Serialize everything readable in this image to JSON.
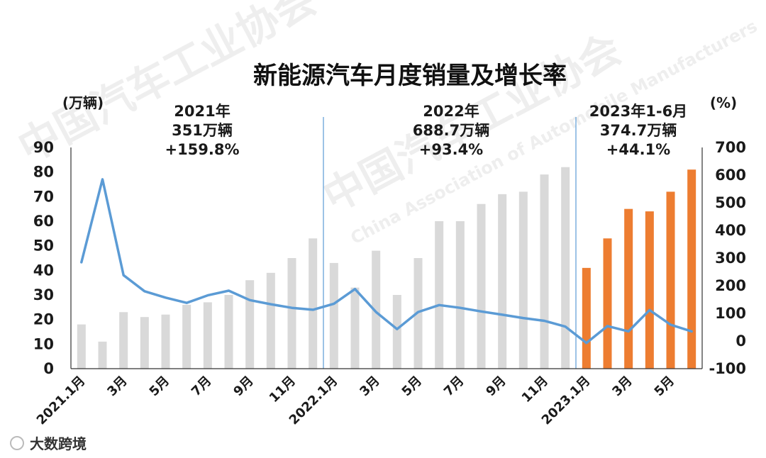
{
  "chart_data": {
    "type": "bar",
    "title": "新能源汽车月度销量及增长率",
    "left_unit": "(万辆)",
    "right_unit": "(%)",
    "y_left": {
      "min": 0,
      "max": 90,
      "ticks": [
        "0",
        "10",
        "20",
        "30",
        "40",
        "50",
        "60",
        "70",
        "80",
        "90"
      ]
    },
    "y_right": {
      "min": -100,
      "max": 700,
      "ticks": [
        "-100",
        "0",
        "100",
        "200",
        "300",
        "400",
        "500",
        "600",
        "700"
      ]
    },
    "x_labels": [
      "2021.1月",
      "",
      "3月",
      "",
      "5月",
      "",
      "7月",
      "",
      "9月",
      "",
      "11月",
      "",
      "2022.1月",
      "",
      "3月",
      "",
      "5月",
      "",
      "7月",
      "",
      "9月",
      "",
      "11月",
      "",
      "2023.1月",
      "",
      "3月",
      "",
      "5月",
      ""
    ],
    "sales": [
      18,
      11,
      23,
      21,
      22,
      26,
      27,
      30,
      36,
      39,
      45,
      53,
      43,
      33,
      48,
      30,
      45,
      60,
      60,
      67,
      71,
      72,
      79,
      82,
      41,
      53,
      65,
      64,
      72,
      81
    ],
    "growth": [
      285,
      585,
      238,
      180,
      157,
      138,
      165,
      182,
      148,
      133,
      120,
      113,
      135,
      188,
      105,
      43,
      105,
      130,
      120,
      107,
      95,
      83,
      73,
      52,
      -7,
      54,
      35,
      112,
      59,
      35
    ],
    "series": [
      {
        "name": "",
        "kind": "bar",
        "values_ref": "sales"
      },
      {
        "name": "",
        "kind": "line",
        "values_ref": "growth"
      }
    ],
    "colors": {
      "bar_past": "#d9d9d9",
      "bar_current": "#ed7d31",
      "line": "#5b9bd5",
      "divider": "#5b9bd5",
      "axis": "#333333"
    },
    "annotations": [
      {
        "line1": "2021年",
        "line2": "351万辆",
        "line3": "+159.8%"
      },
      {
        "line1": "2022年",
        "line2": "688.7万辆",
        "line3": "+93.4%"
      },
      {
        "line1": "2023年1-6月",
        "line2": "374.7万辆",
        "line3": "+44.1%"
      }
    ],
    "grid": false,
    "legend": "none"
  },
  "watermark": {
    "cn": "中国汽车工业协会",
    "en": "China Association of Automobile Manufacturers",
    "source": "大数跨境"
  }
}
